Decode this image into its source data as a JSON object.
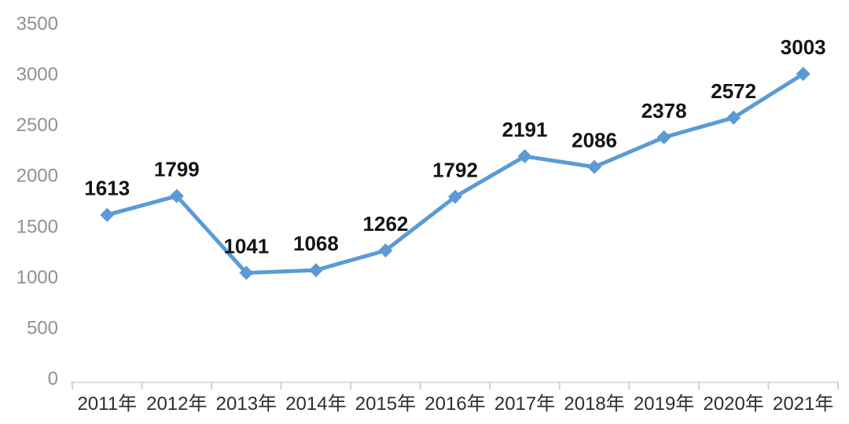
{
  "chart_data": {
    "type": "line",
    "title": "",
    "xlabel": "",
    "ylabel": "",
    "categories": [
      "2011年",
      "2012年",
      "2013年",
      "2014年",
      "2015年",
      "2016年",
      "2017年",
      "2018年",
      "2019年",
      "2020年",
      "2021年"
    ],
    "series": [
      {
        "name": "annual-value",
        "values": [
          1613,
          1799,
          1041,
          1068,
          1262,
          1792,
          2191,
          2086,
          2378,
          2572,
          3003
        ]
      }
    ],
    "data_labels_shown": true,
    "ylim": [
      0,
      3500
    ],
    "yticks": [
      0,
      500,
      1000,
      1500,
      2000,
      2500,
      3000,
      3500
    ],
    "grid": false,
    "legend_position": "none",
    "marker": "diamond",
    "colors": {
      "line": "#5B9BD5",
      "marker": "#5B9BD5",
      "data_label": "#141414",
      "y_axis_label": "#919191",
      "x_axis_label": "#2e2e2e",
      "axis_line": "#d9dee5",
      "tick_mark": "#cdd3da",
      "background": "#ffffff"
    }
  }
}
